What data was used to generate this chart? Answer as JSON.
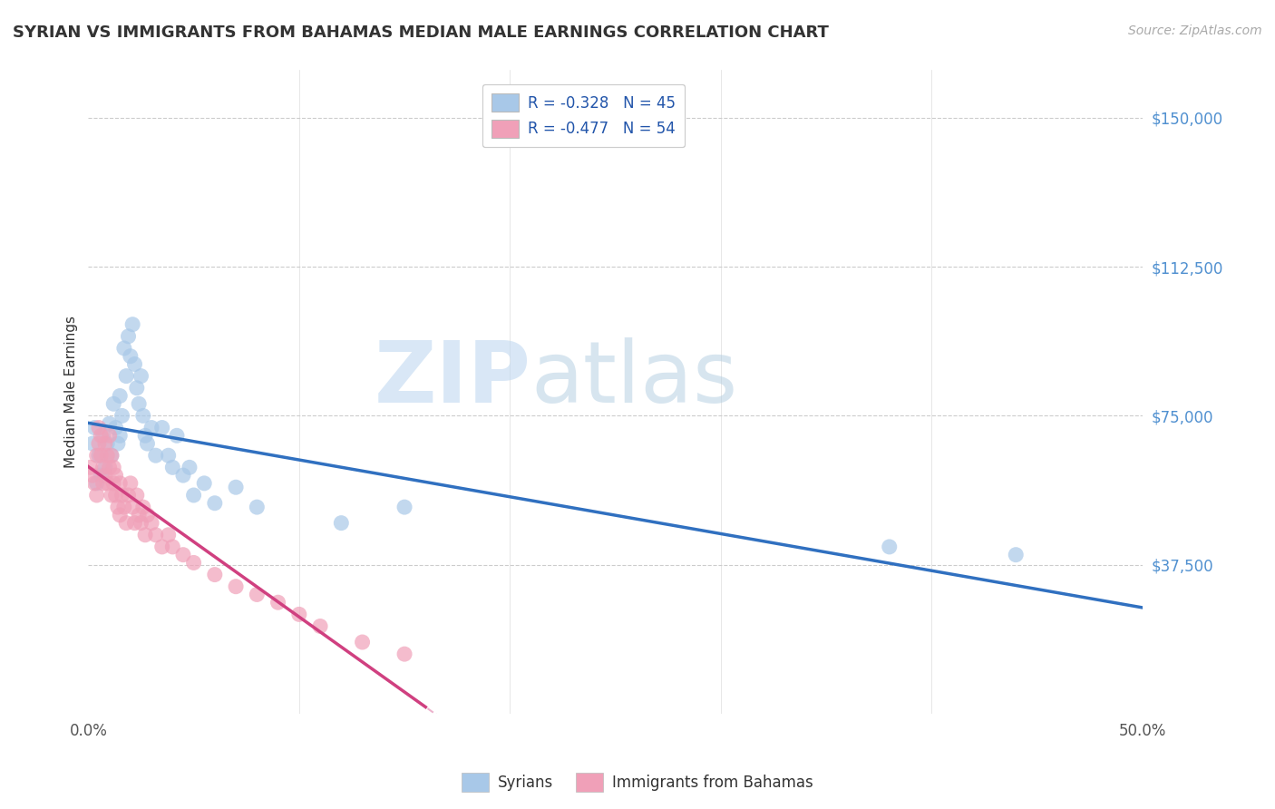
{
  "title": "SYRIAN VS IMMIGRANTS FROM BAHAMAS MEDIAN MALE EARNINGS CORRELATION CHART",
  "source": "Source: ZipAtlas.com",
  "ylabel": "Median Male Earnings",
  "xlim": [
    0.0,
    0.5
  ],
  "ylim": [
    0,
    162000
  ],
  "yticks": [
    37500,
    75000,
    112500,
    150000
  ],
  "ytick_labels": [
    "$37,500",
    "$75,000",
    "$112,500",
    "$150,000"
  ],
  "xticks": [
    0.0,
    0.5
  ],
  "xtick_labels": [
    "0.0%",
    "50.0%"
  ],
  "legend1_r": "R = -0.328",
  "legend1_n": "N = 45",
  "legend2_r": "R = -0.477",
  "legend2_n": "N = 54",
  "legend_label1": "Syrians",
  "legend_label2": "Immigrants from Bahamas",
  "blue_color": "#A8C8E8",
  "pink_color": "#F0A0B8",
  "blue_line_color": "#3070C0",
  "pink_line_color": "#D04080",
  "watermark_zip": "ZIP",
  "watermark_atlas": "atlas",
  "syrians_x": [
    0.002,
    0.003,
    0.004,
    0.005,
    0.006,
    0.007,
    0.008,
    0.009,
    0.01,
    0.011,
    0.012,
    0.013,
    0.014,
    0.015,
    0.015,
    0.016,
    0.017,
    0.018,
    0.019,
    0.02,
    0.021,
    0.022,
    0.023,
    0.024,
    0.025,
    0.026,
    0.027,
    0.028,
    0.03,
    0.032,
    0.035,
    0.038,
    0.04,
    0.042,
    0.045,
    0.048,
    0.05,
    0.055,
    0.06,
    0.07,
    0.08,
    0.12,
    0.15,
    0.38,
    0.44
  ],
  "syrians_y": [
    68000,
    72000,
    58000,
    65000,
    60000,
    70000,
    62000,
    68000,
    73000,
    65000,
    78000,
    72000,
    68000,
    80000,
    70000,
    75000,
    92000,
    85000,
    95000,
    90000,
    98000,
    88000,
    82000,
    78000,
    85000,
    75000,
    70000,
    68000,
    72000,
    65000,
    72000,
    65000,
    62000,
    70000,
    60000,
    62000,
    55000,
    58000,
    53000,
    57000,
    52000,
    48000,
    52000,
    42000,
    40000
  ],
  "bahamas_x": [
    0.001,
    0.002,
    0.003,
    0.004,
    0.004,
    0.005,
    0.005,
    0.006,
    0.006,
    0.007,
    0.007,
    0.008,
    0.008,
    0.009,
    0.009,
    0.01,
    0.01,
    0.011,
    0.011,
    0.012,
    0.012,
    0.013,
    0.013,
    0.014,
    0.015,
    0.015,
    0.016,
    0.017,
    0.018,
    0.019,
    0.02,
    0.021,
    0.022,
    0.023,
    0.024,
    0.025,
    0.026,
    0.027,
    0.028,
    0.03,
    0.032,
    0.035,
    0.038,
    0.04,
    0.045,
    0.05,
    0.06,
    0.07,
    0.08,
    0.09,
    0.1,
    0.11,
    0.13,
    0.15
  ],
  "bahamas_y": [
    62000,
    60000,
    58000,
    65000,
    55000,
    72000,
    68000,
    70000,
    65000,
    62000,
    58000,
    68000,
    60000,
    65000,
    58000,
    70000,
    62000,
    65000,
    55000,
    62000,
    58000,
    60000,
    55000,
    52000,
    58000,
    50000,
    55000,
    52000,
    48000,
    55000,
    58000,
    52000,
    48000,
    55000,
    50000,
    48000,
    52000,
    45000,
    50000,
    48000,
    45000,
    42000,
    45000,
    42000,
    40000,
    38000,
    35000,
    32000,
    30000,
    28000,
    25000,
    22000,
    18000,
    15000
  ]
}
